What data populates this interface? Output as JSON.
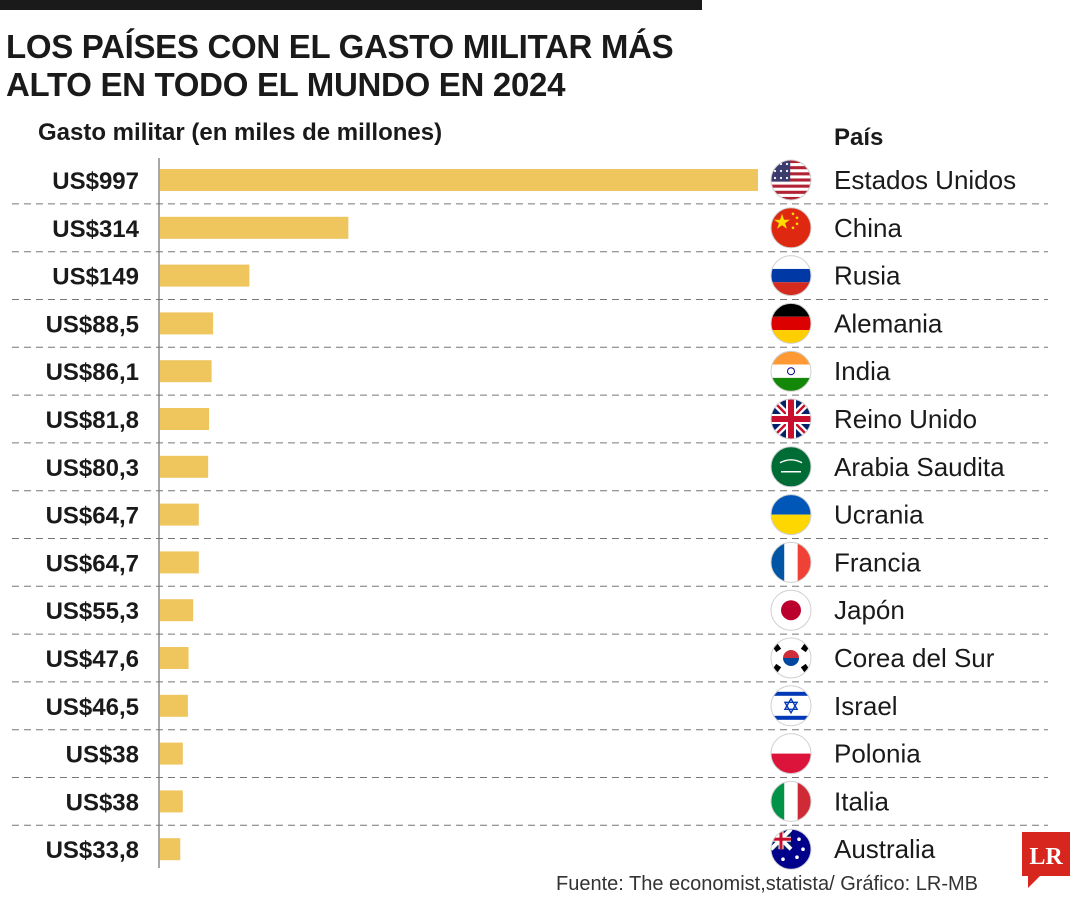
{
  "header": {
    "title_line1": "LOS PAÍSES CON EL GASTO MILITAR MÁS",
    "title_line2": "ALTO EN TODO EL MUNDO EN 2024",
    "axis_title": "Gasto militar (en miles de millones)",
    "country_header": "País"
  },
  "footer": {
    "source": "Fuente: The economist,statista/ Gráfico: LR-MB",
    "logo_text": "LR"
  },
  "colors": {
    "bar": "#efc55e",
    "text": "#1a1a1a",
    "logo": "#d7261e"
  },
  "chart_data": {
    "type": "bar",
    "orientation": "horizontal",
    "title": "LOS PAÍSES CON EL GASTO MILITAR MÁS ALTO EN TODO EL MUNDO EN 2024",
    "xlabel": "Gasto militar (en miles de millones)",
    "ylabel": "País",
    "xlim": [
      0,
      997
    ],
    "grid": "dashed row separators",
    "categories": [
      "Estados Unidos",
      "China",
      "Rusia",
      "Alemania",
      "India",
      "Reino Unido",
      "Arabia Saudita",
      "Ucrania",
      "Francia",
      "Japón",
      "Corea del Sur",
      "Israel",
      "Polonia",
      "Italia",
      "Australia"
    ],
    "values": [
      997,
      314,
      149,
      88.5,
      86.1,
      81.8,
      80.3,
      64.7,
      64.7,
      55.3,
      47.6,
      46.5,
      38,
      38,
      33.8
    ],
    "value_labels": [
      "US$997",
      "US$314",
      "US$149",
      "US$88,5",
      "US$86,1",
      "US$81,8",
      "US$80,3",
      "US$64,7",
      "US$64,7",
      "US$55,3",
      "US$47,6",
      "US$46,5",
      "US$38",
      "US$38",
      "US$33,8"
    ],
    "flags": [
      "usa-flag-icon",
      "china-flag-icon",
      "russia-flag-icon",
      "germany-flag-icon",
      "india-flag-icon",
      "uk-flag-icon",
      "saudi-arabia-flag-icon",
      "ukraine-flag-icon",
      "france-flag-icon",
      "japan-flag-icon",
      "south-korea-flag-icon",
      "israel-flag-icon",
      "poland-flag-icon",
      "italy-flag-icon",
      "australia-flag-icon"
    ]
  }
}
